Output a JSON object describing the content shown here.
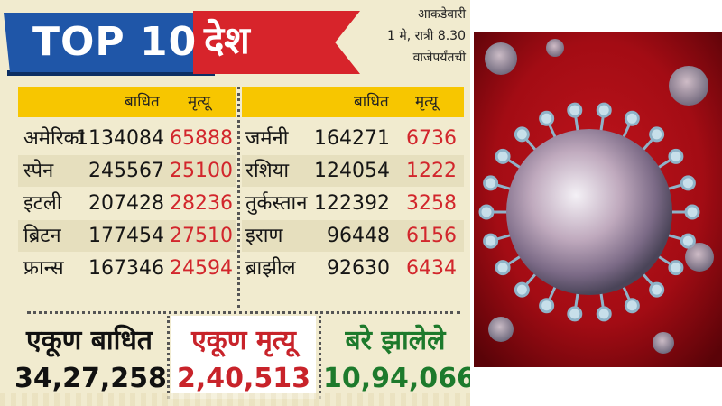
{
  "banner": {
    "title": "TOP 10",
    "word": "देश"
  },
  "note": {
    "line1": "आकडेवारी",
    "line2": "1 मे, रात्री 8.30",
    "line3": "वाजेपर्यंतची"
  },
  "headers": {
    "infected": "बाधित",
    "deaths": "मृत्यू"
  },
  "left_rows": [
    {
      "country": "अमेरिका",
      "infected": "1134084",
      "deaths": "65888"
    },
    {
      "country": "स्पेन",
      "infected": "245567",
      "deaths": "25100"
    },
    {
      "country": "इटली",
      "infected": "207428",
      "deaths": "28236"
    },
    {
      "country": "ब्रिटन",
      "infected": "177454",
      "deaths": "27510"
    },
    {
      "country": "फ्रान्स",
      "infected": "167346",
      "deaths": "24594"
    }
  ],
  "right_rows": [
    {
      "country": "जर्मनी",
      "infected": "164271",
      "deaths": "6736"
    },
    {
      "country": "रशिया",
      "infected": "124054",
      "deaths": "1222"
    },
    {
      "country": "तुर्कस्तान",
      "infected": "122392",
      "deaths": "3258"
    },
    {
      "country": "इराण",
      "infected": "96448",
      "deaths": "6156"
    },
    {
      "country": "ब्राझील",
      "infected": "92630",
      "deaths": "6434"
    }
  ],
  "totals": {
    "infected": {
      "label": "एकूण बाधित",
      "value": "34,27,258"
    },
    "deaths": {
      "label": "एकूण मृत्यू",
      "value": "2,40,513"
    },
    "recovered": {
      "label": "बरे झालेले",
      "value": "10,94,066"
    }
  },
  "colors": {
    "banner_blue": "#1f56a8",
    "banner_red": "#d7242b",
    "header_yellow": "#f7c600",
    "death_red": "#d2262c",
    "recovered_green": "#1d7a2c",
    "panel_bg": "#f1ebcf"
  }
}
